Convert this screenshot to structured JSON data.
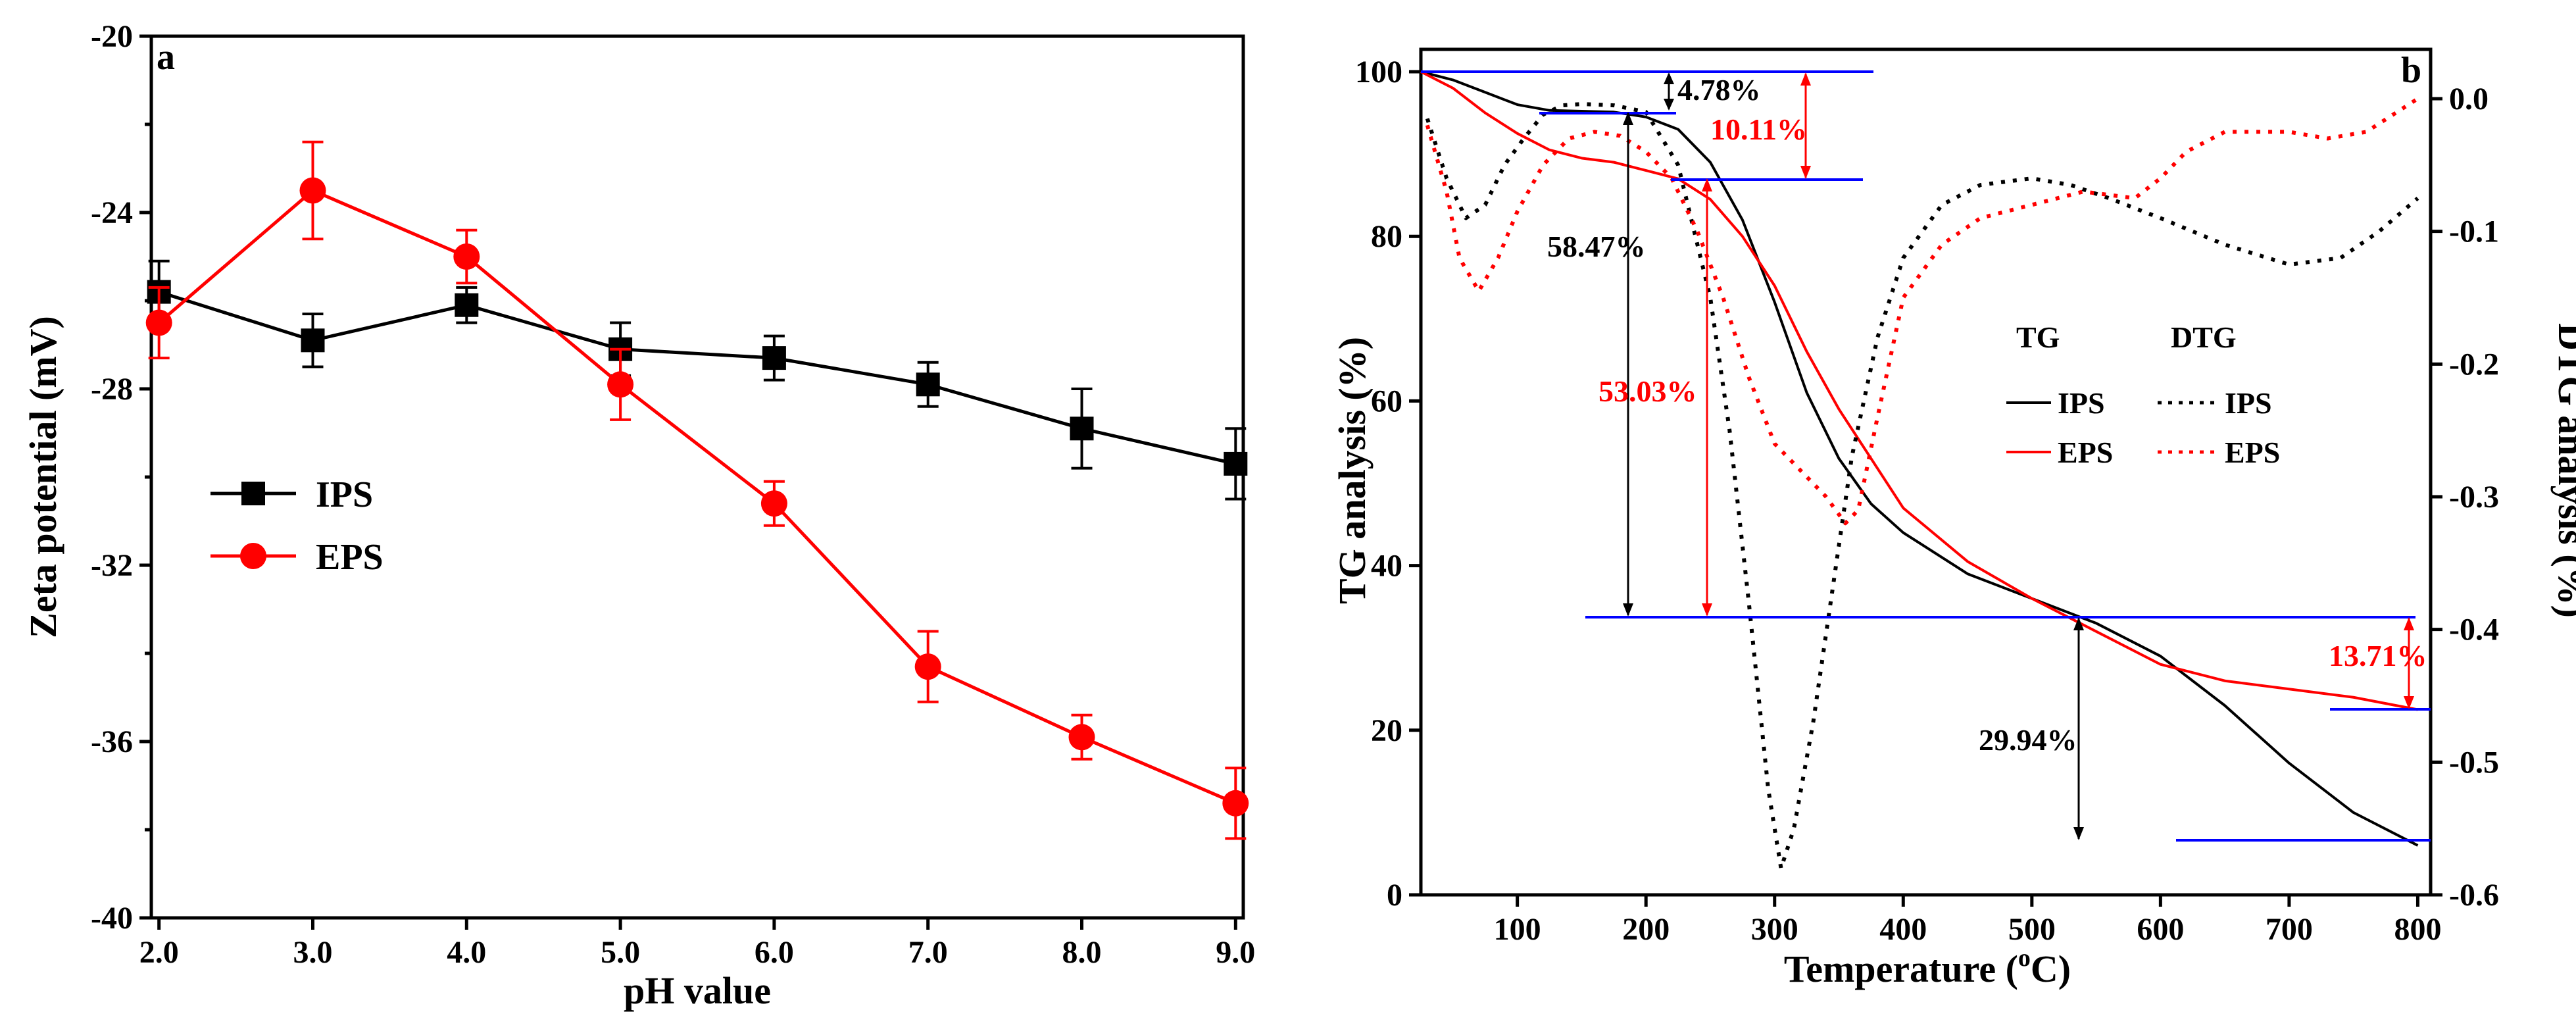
{
  "chart_data": [
    {
      "panel": "a",
      "type": "line",
      "xlabel": "pH value",
      "ylabel": "Zeta potential (mV)",
      "x": [
        2.0,
        3.0,
        4.0,
        5.0,
        6.0,
        7.0,
        8.0,
        9.0
      ],
      "xtick_labels": [
        "2.0",
        "3.0",
        "4.0",
        "5.0",
        "6.0",
        "7.0",
        "8.0",
        "9.0"
      ],
      "xlim": [
        1.95,
        9.05
      ],
      "ylim": [
        -40,
        -20
      ],
      "yticks": [
        -40,
        -36,
        -32,
        -28,
        -24,
        -20
      ],
      "yminor": [
        -38,
        -34,
        -30,
        -26,
        -22
      ],
      "legend_position": "middle-left",
      "series": [
        {
          "name": "IPS",
          "color": "#000000",
          "marker": "square",
          "values": [
            -25.8,
            -26.9,
            -26.1,
            -27.1,
            -27.3,
            -27.9,
            -28.9,
            -29.7
          ],
          "errors": [
            0.7,
            0.6,
            0.4,
            0.6,
            0.5,
            0.5,
            0.9,
            0.8
          ]
        },
        {
          "name": "EPS",
          "color": "#ff0000",
          "marker": "circle",
          "values": [
            -26.5,
            -23.5,
            -25.0,
            -27.9,
            -30.6,
            -34.3,
            -35.9,
            -37.4
          ],
          "errors": [
            0.8,
            1.1,
            0.6,
            0.8,
            0.5,
            0.8,
            0.5,
            0.8
          ]
        }
      ]
    },
    {
      "panel": "b",
      "type": "line",
      "xlabel": "Temperature (°C)",
      "xlabel_main": "Temperature (",
      "xlabel_sup": "o",
      "xlabel_end": "C)",
      "ylabel": "TG analysis (%)",
      "ylabel_right": "DTG analysis (%)",
      "xlim": [
        25,
        810
      ],
      "xticks": [
        100,
        200,
        300,
        400,
        500,
        600,
        700,
        800
      ],
      "ylim": [
        0,
        100
      ],
      "yticks": [
        0,
        20,
        40,
        60,
        80,
        100
      ],
      "y2lim": [
        -0.6,
        0.02
      ],
      "y2ticks": [
        -0.6,
        -0.5,
        -0.4,
        -0.3,
        -0.2,
        -0.1,
        0.0
      ],
      "y2tick_labels": [
        "-0.6",
        "-0.5",
        "-0.4",
        "-0.3",
        "-0.2",
        "-0.1",
        "0.0"
      ],
      "legend": {
        "tg_title": "TG",
        "dtg_title": "DTG",
        "ips": "IPS",
        "eps": "EPS"
      },
      "series": [
        {
          "name": "TG IPS",
          "axis": "left",
          "style": "solid",
          "color": "#000000",
          "x": [
            25,
            50,
            75,
            100,
            125,
            150,
            175,
            200,
            225,
            250,
            275,
            300,
            325,
            350,
            375,
            400,
            450,
            500,
            550,
            600,
            650,
            700,
            750,
            800
          ],
          "y": [
            100,
            99,
            97.5,
            96,
            95.3,
            95.2,
            95.1,
            94.5,
            93,
            89,
            82,
            72,
            61,
            53,
            47.5,
            44,
            39,
            36,
            33,
            29,
            23,
            16,
            10,
            6
          ]
        },
        {
          "name": "TG EPS",
          "axis": "left",
          "style": "solid",
          "color": "#ff0000",
          "x": [
            25,
            50,
            75,
            100,
            125,
            150,
            175,
            200,
            225,
            250,
            275,
            300,
            325,
            350,
            375,
            400,
            450,
            500,
            550,
            600,
            650,
            700,
            750,
            800
          ],
          "y": [
            100,
            98,
            95,
            92.5,
            90.5,
            89.5,
            89,
            88,
            87,
            84.5,
            80,
            74,
            66,
            59,
            53,
            47,
            40.5,
            36,
            32,
            28,
            26,
            25,
            24,
            22.5
          ]
        },
        {
          "name": "DTG IPS",
          "axis": "right",
          "style": "dotted",
          "color": "#000000",
          "x": [
            30,
            45,
            60,
            75,
            90,
            105,
            120,
            135,
            150,
            175,
            200,
            225,
            250,
            265,
            280,
            295,
            305,
            315,
            330,
            345,
            360,
            380,
            400,
            430,
            460,
            500,
            530,
            560,
            600,
            650,
            700,
            740,
            770,
            800
          ],
          "y": [
            -0.015,
            -0.06,
            -0.09,
            -0.08,
            -0.05,
            -0.03,
            -0.012,
            -0.005,
            -0.004,
            -0.005,
            -0.01,
            -0.05,
            -0.15,
            -0.25,
            -0.38,
            -0.52,
            -0.58,
            -0.55,
            -0.47,
            -0.37,
            -0.27,
            -0.18,
            -0.12,
            -0.08,
            -0.065,
            -0.06,
            -0.065,
            -0.075,
            -0.09,
            -0.11,
            -0.125,
            -0.12,
            -0.1,
            -0.075
          ]
        },
        {
          "name": "DTG EPS",
          "axis": "right",
          "style": "dotted",
          "color": "#ff0000",
          "x": [
            30,
            45,
            55,
            70,
            85,
            100,
            120,
            140,
            160,
            180,
            200,
            220,
            240,
            260,
            280,
            300,
            320,
            340,
            355,
            365,
            380,
            400,
            430,
            460,
            500,
            540,
            580,
            600,
            620,
            650,
            700,
            730,
            760,
            800
          ],
          "y": [
            -0.02,
            -0.07,
            -0.12,
            -0.145,
            -0.12,
            -0.085,
            -0.05,
            -0.03,
            -0.025,
            -0.028,
            -0.04,
            -0.06,
            -0.1,
            -0.15,
            -0.21,
            -0.26,
            -0.28,
            -0.3,
            -0.32,
            -0.31,
            -0.24,
            -0.15,
            -0.11,
            -0.09,
            -0.08,
            -0.07,
            -0.075,
            -0.06,
            -0.04,
            -0.025,
            -0.025,
            -0.03,
            -0.025,
            0.0
          ]
        }
      ],
      "annotations": [
        {
          "text": "4.78%",
          "color": "#000000"
        },
        {
          "text": "10.11%",
          "color": "#ff0000"
        },
        {
          "text": "58.47%",
          "color": "#000000"
        },
        {
          "text": "53.03%",
          "color": "#ff0000"
        },
        {
          "text": "29.94%",
          "color": "#000000"
        },
        {
          "text": "13.71%",
          "color": "#ff0000"
        }
      ],
      "guide_color": "#0000ff"
    }
  ]
}
